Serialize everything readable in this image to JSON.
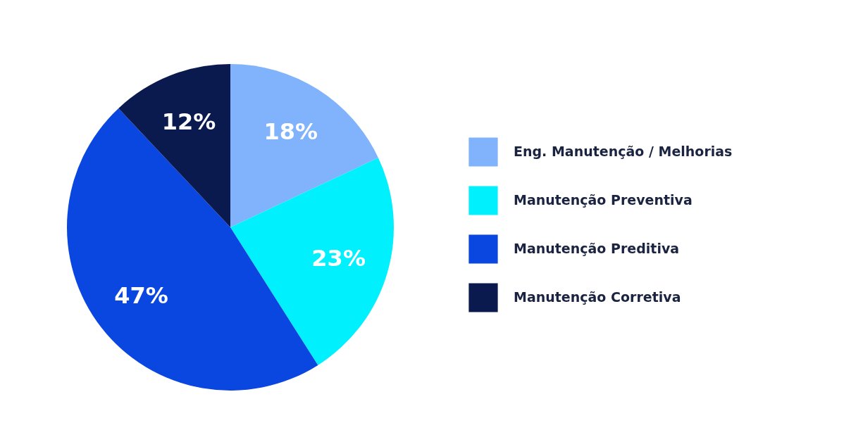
{
  "chart_data": {
    "type": "pie",
    "categories": [
      "Eng. Manutenção / Melhorias",
      "Manutenção Preventiva",
      "Manutenção Preditiva",
      "Manutenção Corretiva"
    ],
    "values": [
      18,
      23,
      47,
      12
    ],
    "colors": [
      "#80b3fb",
      "#00f0fd",
      "#0a46e0",
      "#0a1a4e"
    ],
    "value_labels": [
      "18%",
      "23%",
      "47%",
      "12%"
    ],
    "legend": "right"
  }
}
